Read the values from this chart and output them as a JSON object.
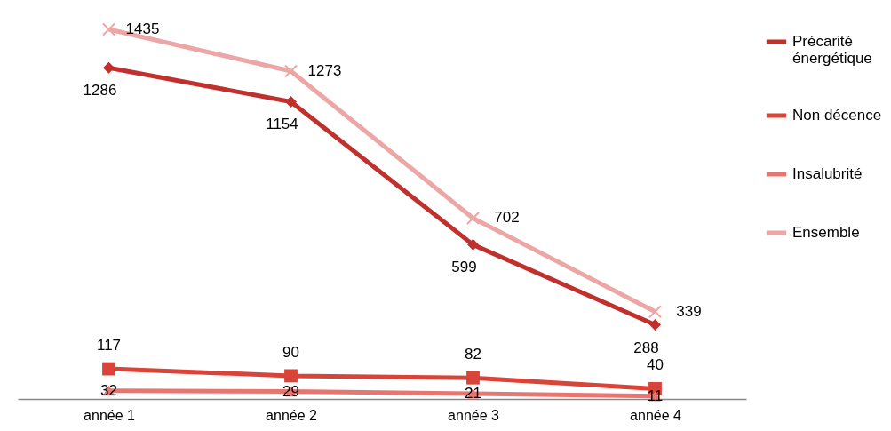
{
  "chart_data": {
    "type": "line",
    "categories": [
      "année 1",
      "année 2",
      "année 3",
      "année 4"
    ],
    "series": [
      {
        "name": "Précarité énergétique",
        "color": "#c0312d",
        "marker": "diamond",
        "values": [
          1286,
          1154,
          599,
          288
        ]
      },
      {
        "name": "Non décence",
        "color": "#d9443a",
        "marker": "square",
        "values": [
          117,
          90,
          82,
          40
        ]
      },
      {
        "name": "Insalubrité",
        "color": "#e87670",
        "marker": "triangle",
        "values": [
          32,
          29,
          21,
          11
        ]
      },
      {
        "name": "Ensemble",
        "color": "#eba6a5",
        "marker": "cross",
        "values": [
          1435,
          1273,
          702,
          339
        ]
      }
    ],
    "data_labels": true,
    "legend": "right",
    "grid": false
  }
}
